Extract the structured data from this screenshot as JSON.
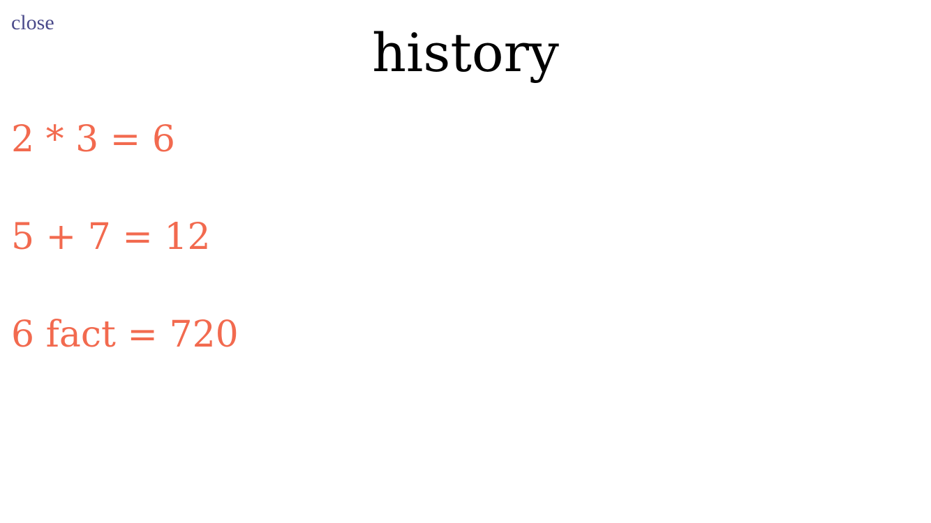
{
  "header": {
    "close_label": "close",
    "title": "history"
  },
  "history": {
    "items": [
      "2 * 3 = 6",
      "5 + 7 = 12",
      "6 fact = 720"
    ]
  },
  "colors": {
    "close_link": "#4a4a8a",
    "title": "#000000",
    "history_item": "#f26a4f",
    "background": "#ffffff"
  }
}
